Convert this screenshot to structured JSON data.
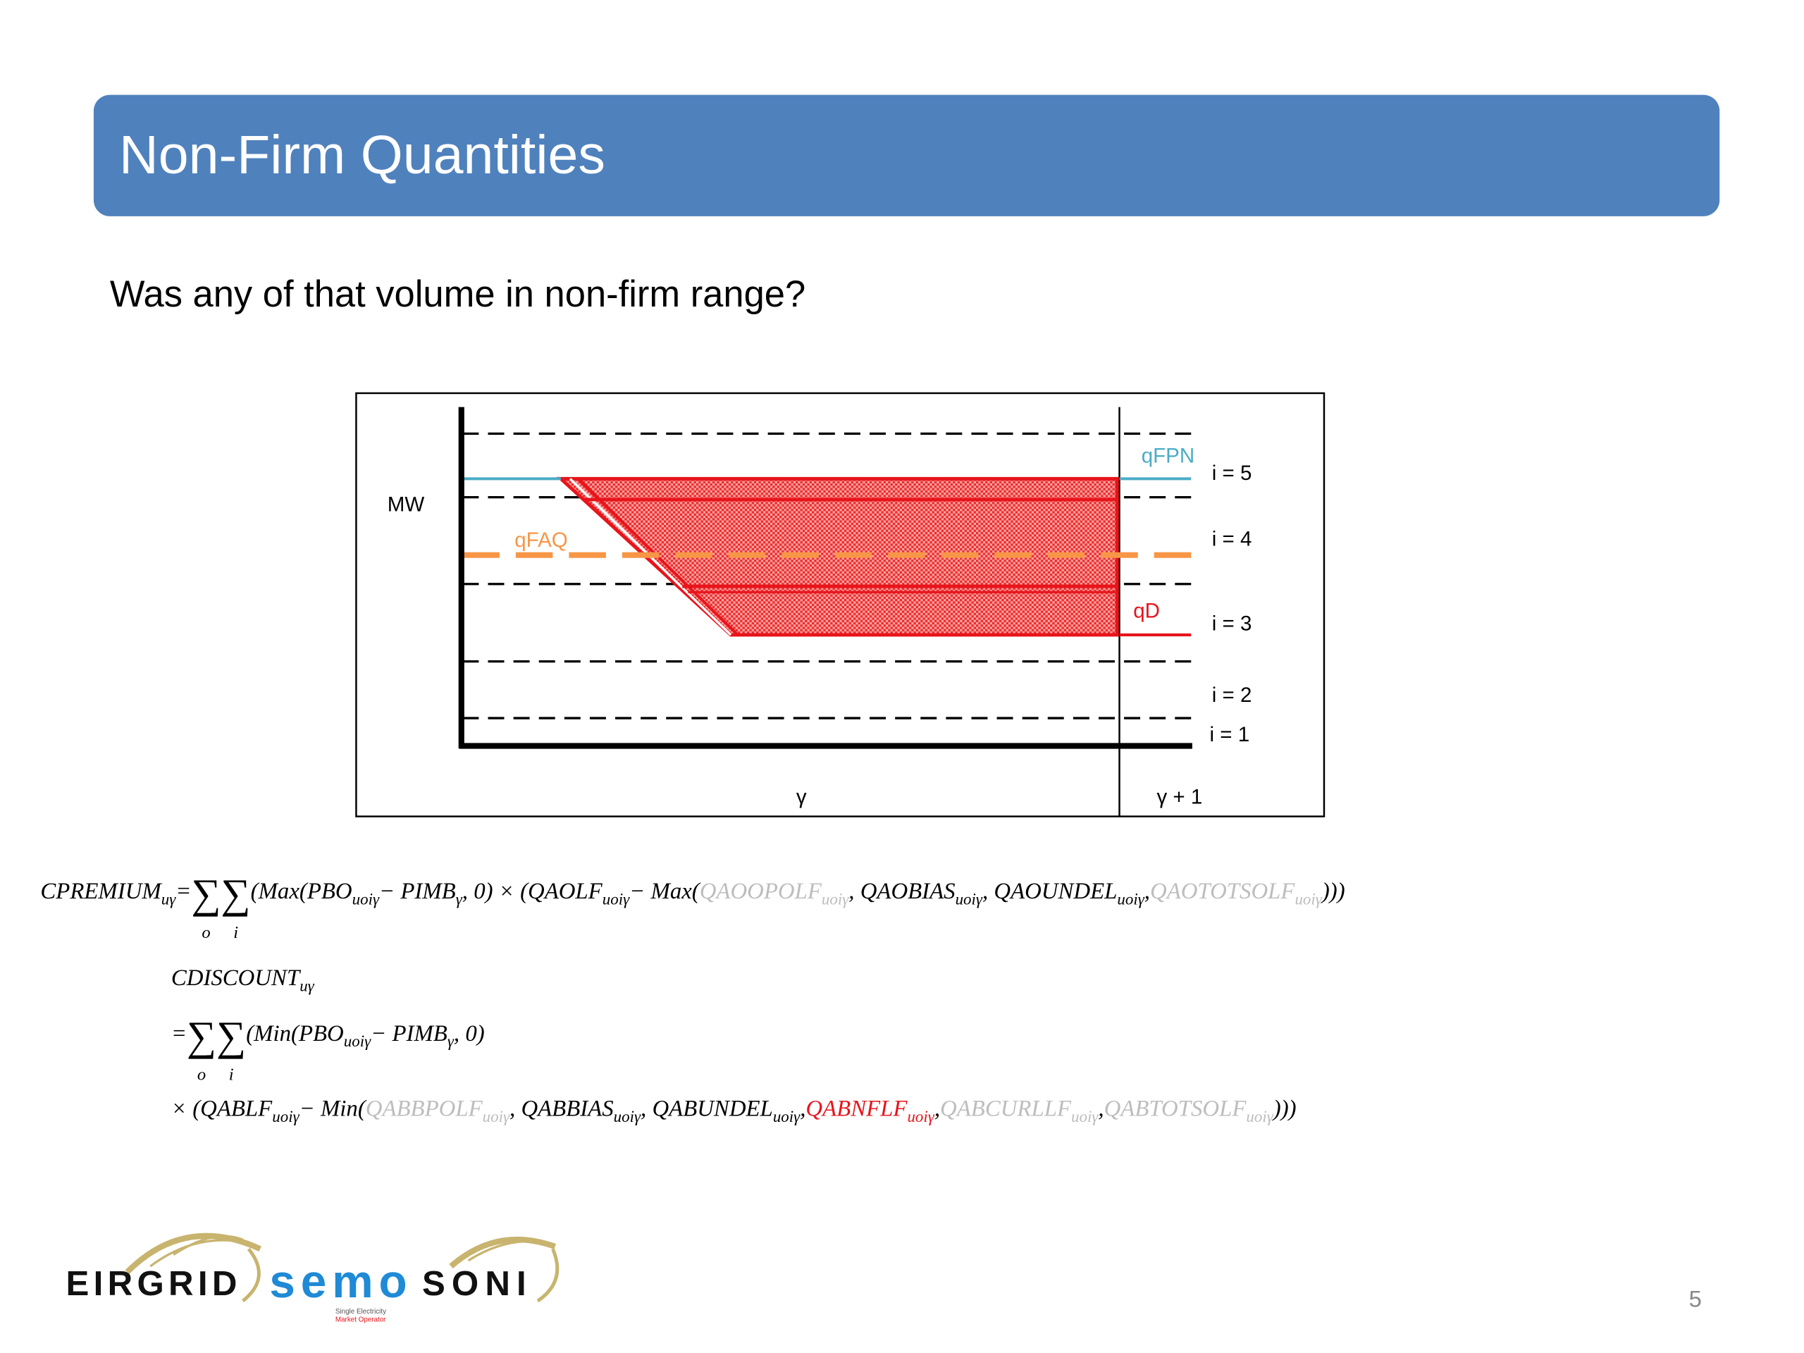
{
  "header": {
    "title": "Non-Firm Quantities"
  },
  "body": {
    "question": "Was any of that volume in non-firm range?"
  },
  "diagram": {
    "y_label": "MW",
    "line_labels": {
      "qfpn": "qFPN",
      "qfaq": "qFAQ",
      "qd": "qD"
    },
    "bands": [
      "i = 5",
      "i = 4",
      "i = 3",
      "i = 2",
      "i = 1"
    ],
    "periods": [
      "γ",
      "γ + 1"
    ]
  },
  "formulas": {
    "lines": [
      [
        {
          "t": "CPREMIUM",
          "s": "uγ"
        },
        {
          "t": " = "
        },
        {
          "t": "∑",
          "u": "o"
        },
        {
          "t": "∑",
          "u": "i"
        },
        {
          "t": "(Max(PBO",
          "s": "uoiγ"
        },
        {
          "t": " − PIMB",
          "s": "γ"
        },
        {
          "t": ", 0) × (QAOLF",
          "s": "uoiγ"
        },
        {
          "t": " −  Max("
        },
        {
          "t": "QAOOPOLF",
          "s": "uoiγ",
          "color": "#bdbdbd"
        },
        {
          "t": ", QAOBIAS",
          "s": "uoiγ"
        },
        {
          "t": ", QAOUNDEL",
          "s": "uoiγ"
        },
        {
          "t": ", "
        },
        {
          "t": "QAOTOTSOLF",
          "s": "uoiγ",
          "color": "#bdbdbd"
        },
        {
          "t": ")))"
        }
      ],
      [
        {
          "t": "CDISCOUNT",
          "s": "uγ"
        }
      ],
      [
        {
          "t": "= "
        },
        {
          "t": "∑",
          "u": "o"
        },
        {
          "t": "∑",
          "u": "i"
        },
        {
          "t": "(Min(PBO",
          "s": "uoiγ"
        },
        {
          "t": " − PIMB",
          "s": "γ"
        },
        {
          "t": ", 0)"
        }
      ],
      [
        {
          "t": "× (QABLF",
          "s": "uoiγ"
        },
        {
          "t": " − Min("
        },
        {
          "t": "QABBPOLF",
          "s": "uoiγ",
          "color": "#bdbdbd"
        },
        {
          "t": ", QABBIAS",
          "s": "uoiγ"
        },
        {
          "t": ", QABUNDEL",
          "s": "uoiγ"
        },
        {
          "t": ", "
        },
        {
          "t": "QABNFLF",
          "s": "uoiγ",
          "color": "#e8141b"
        },
        {
          "t": ", "
        },
        {
          "t": "QABCURLLF",
          "s": "uoiγ",
          "color": "#bdbdbd"
        },
        {
          "t": ", "
        },
        {
          "t": "QABTOTSOLF",
          "s": "uoiγ",
          "color": "#bdbdbd"
        },
        {
          "t": ")))"
        }
      ]
    ]
  },
  "footer": {
    "logos": [
      "EIRGRID",
      "semo",
      "SONI"
    ],
    "semo_tagline": [
      "Single Electricity",
      "Market Operator"
    ],
    "page_number": "5"
  }
}
